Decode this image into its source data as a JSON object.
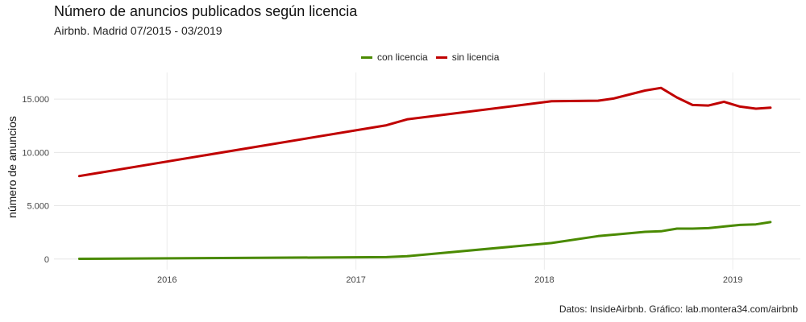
{
  "header": {
    "title": "Número de anuncios publicados según licencia",
    "subtitle": "Airbnb. Madrid 07/2015 - 03/2019"
  },
  "caption": "Datos: InsideAirbnb. Gráfico: lab.montera34.com/airbnb",
  "legend": [
    {
      "label": "con licencia",
      "color": "#4a8a00"
    },
    {
      "label": "sin licencia",
      "color": "#c00000"
    }
  ],
  "chart_data": {
    "type": "line",
    "title": "Número de anuncios publicados según licencia",
    "subtitle": "Airbnb. Madrid 07/2015 - 03/2019",
    "xlabel": "",
    "ylabel": "número de anuncios",
    "xlim": [
      "2015-05-27",
      "2019-05-12"
    ],
    "ylim": [
      -1000,
      17500
    ],
    "x_ticks": [
      {
        "date": "2016-01-01",
        "label": "2016"
      },
      {
        "date": "2017-01-01",
        "label": "2017"
      },
      {
        "date": "2018-01-01",
        "label": "2018"
      },
      {
        "date": "2019-01-01",
        "label": "2019"
      }
    ],
    "y_ticks": [
      {
        "value": 0,
        "label": "0"
      },
      {
        "value": 5000,
        "label": "5.000"
      },
      {
        "value": 10000,
        "label": "10.000"
      },
      {
        "value": 15000,
        "label": "15.000"
      }
    ],
    "grid": true,
    "legend_position": "top",
    "series": [
      {
        "name": "con licencia",
        "color": "#4a8a00",
        "end_label": "3.464",
        "points": [
          [
            "2015-07-15",
            20
          ],
          [
            "2017-03-01",
            180
          ],
          [
            "2017-04-10",
            260
          ],
          [
            "2018-01-15",
            1500
          ],
          [
            "2018-04-15",
            2150
          ],
          [
            "2018-07-15",
            2550
          ],
          [
            "2018-08-15",
            2600
          ],
          [
            "2018-09-15",
            2850
          ],
          [
            "2018-10-15",
            2850
          ],
          [
            "2018-11-15",
            2900
          ],
          [
            "2018-12-15",
            3050
          ],
          [
            "2019-01-15",
            3200
          ],
          [
            "2019-02-15",
            3250
          ],
          [
            "2019-03-15",
            3464
          ]
        ]
      },
      {
        "name": "sin licencia",
        "color": "#c00000",
        "end_label": "14.192",
        "points": [
          [
            "2015-07-15",
            7780
          ],
          [
            "2017-03-01",
            12550
          ],
          [
            "2017-04-10",
            13100
          ],
          [
            "2018-01-15",
            14800
          ],
          [
            "2018-04-15",
            14850
          ],
          [
            "2018-05-15",
            15050
          ],
          [
            "2018-07-15",
            15800
          ],
          [
            "2018-08-15",
            16050
          ],
          [
            "2018-09-15",
            15150
          ],
          [
            "2018-10-15",
            14450
          ],
          [
            "2018-11-15",
            14400
          ],
          [
            "2018-12-15",
            14750
          ],
          [
            "2019-01-15",
            14300
          ],
          [
            "2019-02-15",
            14100
          ],
          [
            "2019-03-15",
            14192
          ]
        ]
      }
    ]
  }
}
